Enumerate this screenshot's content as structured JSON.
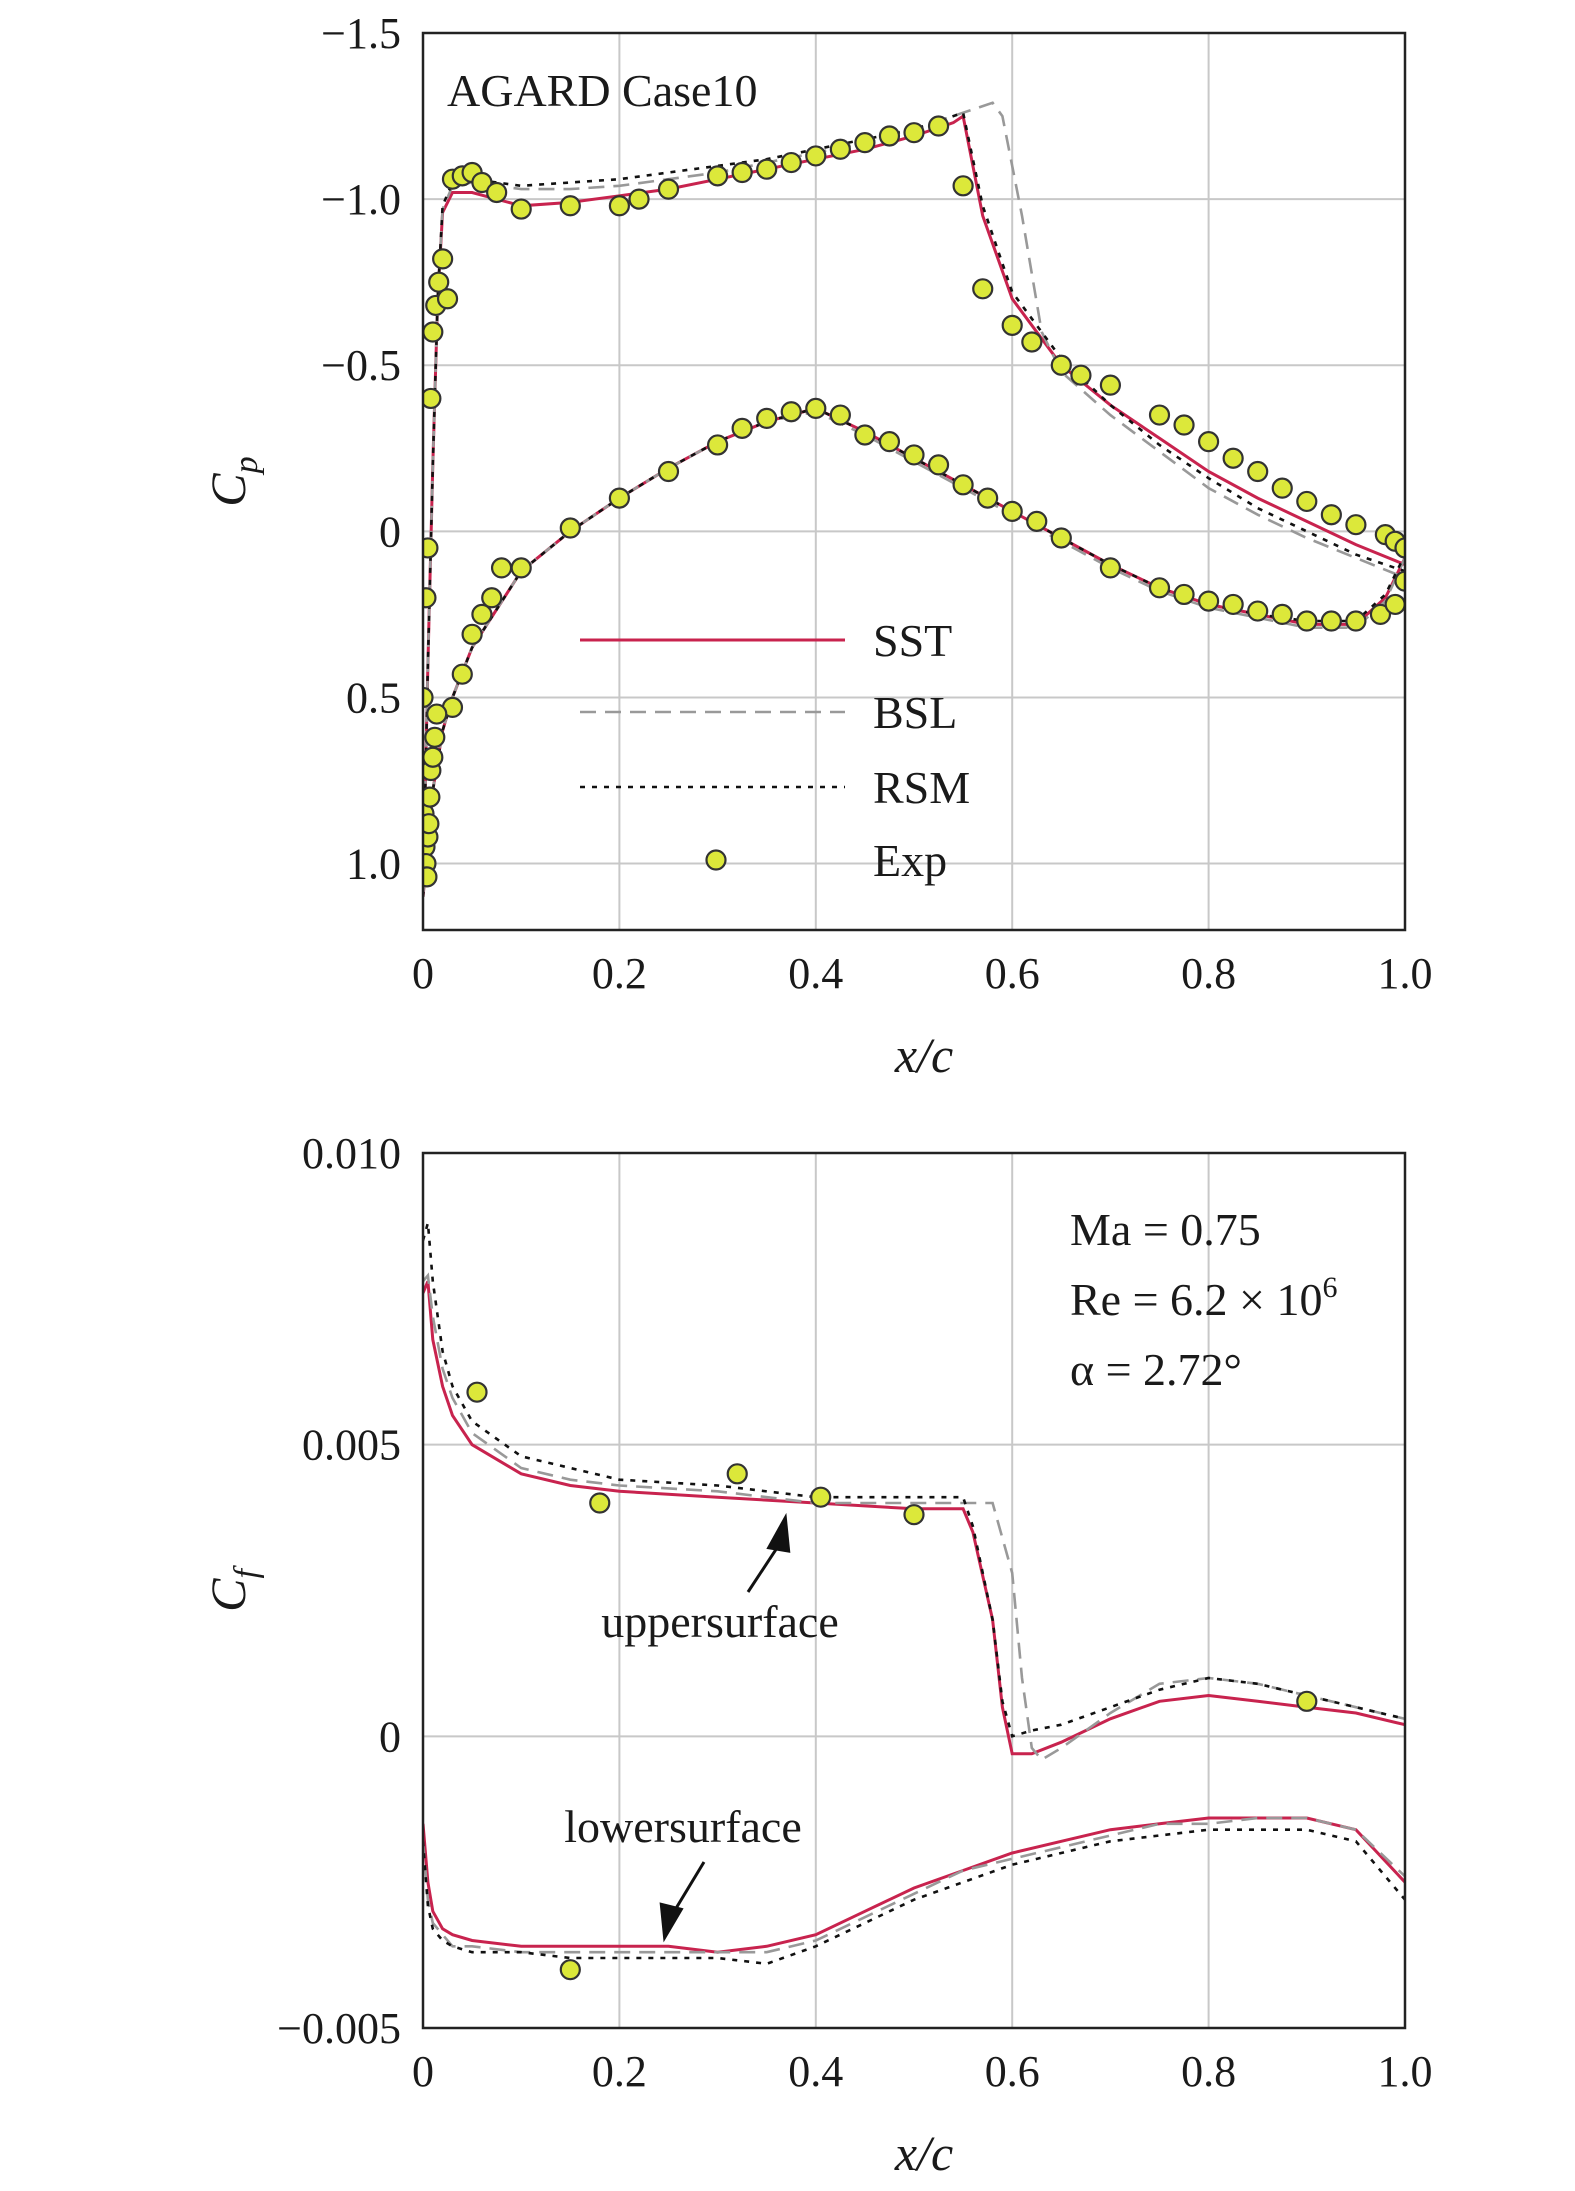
{
  "colors": {
    "sst": "#c8234e",
    "bsl": "#999999",
    "bsl_green": "#6aa84f",
    "rsm": "#111111",
    "exp_fill": "#dce83a",
    "exp_edge": "#333333"
  },
  "chart_data": [
    {
      "type": "line",
      "title": "AGARD Case10",
      "xlabel": "x/c",
      "ylabel_main": "C",
      "ylabel_sub": "p",
      "xlim": [
        0,
        1.0
      ],
      "ylim": [
        1.2,
        -1.5
      ],
      "y_inverted": true,
      "grid": true,
      "xticks": [
        "0",
        "0.2",
        "0.4",
        "0.6",
        "0.8",
        "1.0"
      ],
      "xtick_values": [
        0,
        0.2,
        0.4,
        0.6,
        0.8,
        1.0
      ],
      "yticks": [
        "−1.5",
        "−1.0",
        "−0.5",
        "0",
        "0.5",
        "1.0"
      ],
      "ytick_values": [
        -1.5,
        -1.0,
        -0.5,
        0,
        0.5,
        1.0
      ],
      "legend": {
        "placement": "center",
        "entries": [
          {
            "key": "sst",
            "label": "SST"
          },
          {
            "key": "bsl",
            "label": "BSL"
          },
          {
            "key": "rsm",
            "label": "RSM"
          },
          {
            "key": "exp",
            "label": "Exp"
          }
        ]
      },
      "series": [
        {
          "key": "sst",
          "style": "solid",
          "x": [
            0,
            0.005,
            0.01,
            0.015,
            0.02,
            0.03,
            0.05,
            0.1,
            0.15,
            0.2,
            0.25,
            0.3,
            0.35,
            0.4,
            0.45,
            0.5,
            0.54,
            0.55,
            0.57,
            0.6,
            0.65,
            0.7,
            0.75,
            0.8,
            0.85,
            0.9,
            0.95,
            1.0
          ],
          "y": [
            1.1,
            0.4,
            -0.2,
            -0.7,
            -0.96,
            -1.02,
            -1.02,
            -0.98,
            -0.99,
            -1.01,
            -1.03,
            -1.06,
            -1.09,
            -1.12,
            -1.15,
            -1.19,
            -1.23,
            -1.25,
            -0.95,
            -0.7,
            -0.5,
            -0.38,
            -0.28,
            -0.18,
            -0.1,
            -0.03,
            0.04,
            0.1
          ]
        },
        {
          "key": "sst",
          "style": "solid",
          "x": [
            0,
            0.005,
            0.01,
            0.02,
            0.03,
            0.05,
            0.1,
            0.15,
            0.2,
            0.25,
            0.3,
            0.35,
            0.4,
            0.45,
            0.5,
            0.55,
            0.6,
            0.65,
            0.7,
            0.75,
            0.8,
            0.85,
            0.9,
            0.95,
            0.98,
            1.0
          ],
          "y": [
            1.1,
            0.95,
            0.78,
            0.6,
            0.5,
            0.35,
            0.12,
            0.0,
            -0.1,
            -0.19,
            -0.27,
            -0.33,
            -0.37,
            -0.3,
            -0.22,
            -0.14,
            -0.06,
            0.02,
            0.1,
            0.17,
            0.22,
            0.25,
            0.28,
            0.28,
            0.2,
            0.08
          ]
        },
        {
          "key": "bsl",
          "style": "dashed",
          "x": [
            0,
            0.005,
            0.01,
            0.015,
            0.02,
            0.03,
            0.05,
            0.1,
            0.15,
            0.2,
            0.25,
            0.3,
            0.35,
            0.4,
            0.45,
            0.5,
            0.55,
            0.58,
            0.59,
            0.61,
            0.63,
            0.65,
            0.7,
            0.75,
            0.8,
            0.85,
            0.9,
            0.95,
            1.0
          ],
          "y": [
            1.1,
            0.4,
            -0.2,
            -0.7,
            -0.97,
            -1.04,
            -1.05,
            -1.03,
            -1.03,
            -1.04,
            -1.06,
            -1.08,
            -1.11,
            -1.14,
            -1.17,
            -1.21,
            -1.26,
            -1.29,
            -1.25,
            -0.95,
            -0.6,
            -0.48,
            -0.35,
            -0.24,
            -0.13,
            -0.05,
            0.02,
            0.08,
            0.14
          ]
        },
        {
          "key": "bsl",
          "style": "dashed",
          "x": [
            0,
            0.005,
            0.01,
            0.02,
            0.03,
            0.05,
            0.1,
            0.15,
            0.2,
            0.25,
            0.3,
            0.35,
            0.4,
            0.45,
            0.5,
            0.55,
            0.6,
            0.65,
            0.7,
            0.75,
            0.8,
            0.85,
            0.9,
            0.95,
            0.98,
            1.0
          ],
          "y": [
            1.1,
            0.95,
            0.78,
            0.6,
            0.5,
            0.35,
            0.12,
            0.0,
            -0.1,
            -0.19,
            -0.27,
            -0.33,
            -0.36,
            -0.29,
            -0.21,
            -0.13,
            -0.05,
            0.03,
            0.11,
            0.18,
            0.23,
            0.26,
            0.29,
            0.29,
            0.21,
            0.08
          ]
        },
        {
          "key": "rsm",
          "style": "dotted",
          "x": [
            0,
            0.005,
            0.01,
            0.015,
            0.02,
            0.03,
            0.05,
            0.1,
            0.15,
            0.2,
            0.25,
            0.3,
            0.35,
            0.4,
            0.45,
            0.5,
            0.54,
            0.55,
            0.57,
            0.6,
            0.65,
            0.7,
            0.75,
            0.8,
            0.85,
            0.9,
            0.95,
            1.0
          ],
          "y": [
            1.1,
            0.4,
            -0.2,
            -0.7,
            -0.98,
            -1.05,
            -1.06,
            -1.04,
            -1.05,
            -1.06,
            -1.08,
            -1.1,
            -1.12,
            -1.15,
            -1.18,
            -1.21,
            -1.25,
            -1.26,
            -0.98,
            -0.72,
            -0.52,
            -0.38,
            -0.26,
            -0.16,
            -0.07,
            0.0,
            0.07,
            0.12
          ]
        },
        {
          "key": "rsm",
          "style": "dotted",
          "x": [
            0,
            0.005,
            0.01,
            0.02,
            0.03,
            0.05,
            0.1,
            0.15,
            0.2,
            0.25,
            0.3,
            0.35,
            0.4,
            0.45,
            0.5,
            0.55,
            0.6,
            0.65,
            0.7,
            0.75,
            0.8,
            0.85,
            0.9,
            0.95,
            0.98,
            1.0
          ],
          "y": [
            1.1,
            0.95,
            0.78,
            0.6,
            0.5,
            0.35,
            0.12,
            0.0,
            -0.1,
            -0.19,
            -0.27,
            -0.33,
            -0.37,
            -0.3,
            -0.22,
            -0.14,
            -0.06,
            0.02,
            0.1,
            0.17,
            0.22,
            0.25,
            0.27,
            0.27,
            0.19,
            0.07
          ]
        },
        {
          "key": "exp",
          "style": "marker",
          "x": [
            0.03,
            0.04,
            0.05,
            0.06,
            0.075,
            0.1,
            0.15,
            0.2,
            0.22,
            0.25,
            0.3,
            0.325,
            0.35,
            0.375,
            0.4,
            0.425,
            0.45,
            0.475,
            0.5,
            0.525,
            0.55,
            0.57,
            0.6,
            0.62,
            0.65,
            0.67,
            0.7,
            0.75,
            0.775,
            0.8,
            0.825,
            0.85,
            0.875,
            0.9,
            0.925,
            0.95,
            0.98,
            0.99,
            1.0
          ],
          "y": [
            -1.06,
            -1.07,
            -1.08,
            -1.05,
            -1.02,
            -0.97,
            -0.98,
            -0.98,
            -1.0,
            -1.03,
            -1.07,
            -1.08,
            -1.09,
            -1.11,
            -1.13,
            -1.15,
            -1.17,
            -1.19,
            -1.2,
            -1.22,
            -1.04,
            -0.73,
            -0.62,
            -0.57,
            -0.5,
            -0.47,
            -0.44,
            -0.35,
            -0.32,
            -0.27,
            -0.22,
            -0.18,
            -0.13,
            -0.09,
            -0.05,
            -0.02,
            0.01,
            0.03,
            0.05
          ]
        },
        {
          "key": "exp",
          "style": "marker",
          "x": [
            0.0,
            0.003,
            0.005,
            0.008,
            0.01,
            0.013,
            0.016,
            0.02,
            0.025,
            0.03,
            0.04,
            0.05,
            0.06,
            0.07,
            0.08,
            0.1,
            0.15,
            0.2,
            0.25,
            0.3,
            0.325,
            0.35,
            0.375,
            0.4,
            0.425,
            0.45,
            0.475,
            0.5,
            0.525,
            0.55,
            0.575,
            0.6,
            0.625,
            0.65,
            0.7,
            0.75,
            0.775,
            0.8,
            0.825,
            0.85,
            0.875,
            0.9,
            0.925,
            0.95,
            0.975,
            0.99,
            1.0
          ],
          "y": [
            0.5,
            0.2,
            0.05,
            -0.4,
            -0.6,
            -0.68,
            -0.75,
            -0.82,
            -0.7,
            0.53,
            0.43,
            0.31,
            0.25,
            0.2,
            0.11,
            0.11,
            -0.01,
            -0.1,
            -0.18,
            -0.26,
            -0.31,
            -0.34,
            -0.36,
            -0.37,
            -0.35,
            -0.29,
            -0.27,
            -0.23,
            -0.2,
            -0.14,
            -0.1,
            -0.06,
            -0.03,
            0.02,
            0.11,
            0.17,
            0.19,
            0.21,
            0.22,
            0.24,
            0.25,
            0.27,
            0.27,
            0.27,
            0.25,
            0.22,
            0.15
          ]
        },
        {
          "key": "exp",
          "style": "marker",
          "x": [
            0.001,
            0.002,
            0.003,
            0.004,
            0.005,
            0.006,
            0.007,
            0.008,
            0.01,
            0.012,
            0.014
          ],
          "y": [
            0.85,
            0.95,
            1.0,
            1.04,
            0.92,
            0.88,
            0.8,
            0.72,
            0.68,
            0.62,
            0.55
          ]
        }
      ]
    },
    {
      "type": "line",
      "xlabel": "x/c",
      "ylabel_main": "C",
      "ylabel_sub": "f",
      "xlim": [
        0,
        1.0
      ],
      "ylim": [
        -0.005,
        0.01
      ],
      "grid": true,
      "xticks": [
        "0",
        "0.2",
        "0.4",
        "0.6",
        "0.8",
        "1.0"
      ],
      "xtick_values": [
        0,
        0.2,
        0.4,
        0.6,
        0.8,
        1.0
      ],
      "yticks": [
        "0.010",
        "0.005",
        "0",
        "−0.005"
      ],
      "ytick_values": [
        0.01,
        0.005,
        0,
        -0.005
      ],
      "conditions": {
        "ma": "Ma = 0.75",
        "re": "Re = 6.2 × 10",
        "re_exp": "6",
        "alpha": "α = 2.72°"
      },
      "annotations": [
        {
          "label": "uppersurface",
          "x": 0.37,
          "y": 0.0039
        },
        {
          "label": "lowersurface",
          "x": 0.245,
          "y": -0.0036
        }
      ],
      "series": [
        {
          "key": "sst",
          "style": "solid",
          "x": [
            0,
            0.005,
            0.01,
            0.02,
            0.03,
            0.05,
            0.1,
            0.15,
            0.2,
            0.3,
            0.4,
            0.5,
            0.55,
            0.56,
            0.58,
            0.59,
            0.6,
            0.62,
            0.65,
            0.7,
            0.75,
            0.8,
            0.85,
            0.9,
            0.95,
            1.0
          ],
          "y": [
            0.0076,
            0.0078,
            0.0068,
            0.006,
            0.0055,
            0.005,
            0.0045,
            0.0043,
            0.0042,
            0.0041,
            0.004,
            0.0039,
            0.0039,
            0.0035,
            0.002,
            0.0005,
            -0.0003,
            -0.0003,
            -0.0001,
            0.0003,
            0.0006,
            0.0007,
            0.0006,
            0.0005,
            0.0004,
            0.0002
          ]
        },
        {
          "key": "sst",
          "style": "solid",
          "x": [
            0,
            0.005,
            0.01,
            0.02,
            0.03,
            0.05,
            0.1,
            0.15,
            0.2,
            0.25,
            0.3,
            0.35,
            0.4,
            0.45,
            0.5,
            0.55,
            0.6,
            0.65,
            0.7,
            0.75,
            0.8,
            0.85,
            0.9,
            0.95,
            1.0
          ],
          "y": [
            -0.0015,
            -0.0025,
            -0.003,
            -0.0033,
            -0.0034,
            -0.0035,
            -0.0036,
            -0.0036,
            -0.0036,
            -0.0036,
            -0.0037,
            -0.0036,
            -0.0034,
            -0.003,
            -0.0026,
            -0.0023,
            -0.002,
            -0.0018,
            -0.0016,
            -0.0015,
            -0.0014,
            -0.0014,
            -0.0014,
            -0.0016,
            -0.0025
          ]
        },
        {
          "key": "bsl",
          "style": "dashed",
          "x": [
            0,
            0.005,
            0.01,
            0.02,
            0.03,
            0.05,
            0.1,
            0.15,
            0.2,
            0.3,
            0.4,
            0.5,
            0.55,
            0.58,
            0.6,
            0.61,
            0.62,
            0.63,
            0.65,
            0.7,
            0.75,
            0.8,
            0.85,
            0.9,
            0.95,
            1.0
          ],
          "y": [
            0.0078,
            0.0079,
            0.0072,
            0.0063,
            0.0058,
            0.0052,
            0.0046,
            0.0044,
            0.0043,
            0.0042,
            0.004,
            0.004,
            0.004,
            0.004,
            0.0028,
            0.001,
            -0.0002,
            -0.0004,
            -0.0002,
            0.0004,
            0.0009,
            0.001,
            0.0009,
            0.0007,
            0.0005,
            0.0003
          ]
        },
        {
          "key": "bsl",
          "style": "dashed",
          "x": [
            0,
            0.005,
            0.01,
            0.02,
            0.03,
            0.05,
            0.1,
            0.15,
            0.2,
            0.25,
            0.3,
            0.35,
            0.4,
            0.45,
            0.5,
            0.55,
            0.6,
            0.65,
            0.7,
            0.75,
            0.8,
            0.85,
            0.9,
            0.95,
            1.0
          ],
          "y": [
            -0.0018,
            -0.0028,
            -0.0032,
            -0.0034,
            -0.0036,
            -0.0036,
            -0.0037,
            -0.0037,
            -0.0037,
            -0.0037,
            -0.0037,
            -0.0037,
            -0.0035,
            -0.0031,
            -0.0027,
            -0.0023,
            -0.0021,
            -0.0019,
            -0.0017,
            -0.0015,
            -0.0015,
            -0.0014,
            -0.0014,
            -0.0016,
            -0.0024
          ]
        },
        {
          "key": "rsm",
          "style": "dotted",
          "x": [
            0,
            0.005,
            0.01,
            0.02,
            0.03,
            0.05,
            0.1,
            0.15,
            0.2,
            0.3,
            0.4,
            0.5,
            0.55,
            0.56,
            0.58,
            0.59,
            0.6,
            0.62,
            0.65,
            0.7,
            0.75,
            0.8,
            0.85,
            0.9,
            0.95,
            1.0
          ],
          "y": [
            0.0085,
            0.0088,
            0.0078,
            0.0066,
            0.006,
            0.0054,
            0.0048,
            0.0046,
            0.0044,
            0.0043,
            0.0041,
            0.0041,
            0.0041,
            0.0036,
            0.002,
            0.0006,
            0.0,
            0.0001,
            0.0002,
            0.0005,
            0.0008,
            0.001,
            0.0009,
            0.0007,
            0.0005,
            0.0003
          ]
        },
        {
          "key": "rsm",
          "style": "dotted",
          "x": [
            0,
            0.005,
            0.01,
            0.02,
            0.03,
            0.05,
            0.1,
            0.15,
            0.2,
            0.25,
            0.3,
            0.35,
            0.4,
            0.45,
            0.5,
            0.55,
            0.6,
            0.65,
            0.7,
            0.75,
            0.8,
            0.85,
            0.9,
            0.95,
            1.0
          ],
          "y": [
            -0.0018,
            -0.0029,
            -0.0033,
            -0.0035,
            -0.0036,
            -0.0037,
            -0.0037,
            -0.0038,
            -0.0038,
            -0.0038,
            -0.0038,
            -0.0039,
            -0.0036,
            -0.0032,
            -0.0028,
            -0.0025,
            -0.0022,
            -0.002,
            -0.0018,
            -0.0017,
            -0.0016,
            -0.0016,
            -0.0016,
            -0.0018,
            -0.0028
          ]
        },
        {
          "key": "exp",
          "style": "marker",
          "x": [
            0.055,
            0.18,
            0.32,
            0.405,
            0.5,
            0.9,
            0.15
          ],
          "y": [
            0.0059,
            0.004,
            0.0045,
            0.0041,
            0.0038,
            0.0006,
            -0.004
          ]
        }
      ]
    }
  ]
}
